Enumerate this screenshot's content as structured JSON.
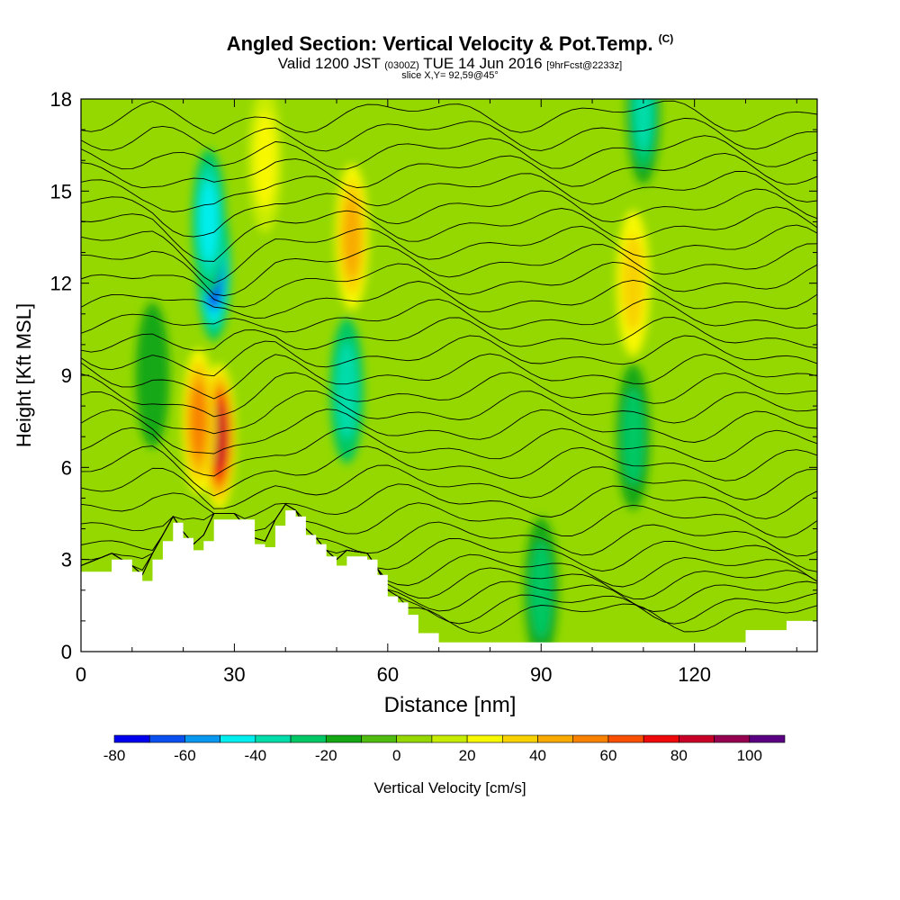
{
  "header": {
    "title": "Angled Section: Vertical Velocity & Pot.Temp.",
    "title_mark": "(C)",
    "valid_prefix": "Valid 1200 JST",
    "valid_utc": "(0300Z)",
    "valid_date": "TUE 14 Jun 2016",
    "forecast": "[9hrFcst@2233z]",
    "slice": "slice X,Y= 92,59@45°"
  },
  "chart_data": {
    "type": "heatmap",
    "title": "Angled Section: Vertical Velocity & Pot.Temp.",
    "xlabel": "Distance [nm]",
    "ylabel": "Height [Kft MSL]",
    "xlim": [
      0,
      144
    ],
    "ylim": [
      0,
      18
    ],
    "x_ticks": [
      "0",
      "30",
      "60",
      "90",
      "120"
    ],
    "y_ticks": [
      "0",
      "3",
      "6",
      "9",
      "12",
      "15",
      "18"
    ],
    "colorbar": {
      "label": "Vertical Velocity [cm/s]",
      "ticks": [
        "-80",
        "-60",
        "-40",
        "-20",
        "0",
        "20",
        "40",
        "60",
        "80",
        "100"
      ],
      "levels": [
        -80,
        -70,
        -60,
        -50,
        -40,
        -30,
        -20,
        -10,
        0,
        10,
        20,
        30,
        40,
        50,
        60,
        70,
        80,
        90,
        100,
        110
      ],
      "colors": [
        "#0000ee",
        "#0a50f0",
        "#0898f0",
        "#00eeee",
        "#00dcaa",
        "#00c864",
        "#14a814",
        "#50bc10",
        "#94d800",
        "#c8ec00",
        "#f8f800",
        "#f8d200",
        "#f8aa00",
        "#f88200",
        "#f85000",
        "#ee0a0a",
        "#c80028",
        "#960050",
        "#5a0082"
      ]
    },
    "velocity_features": [
      {
        "x": 26,
        "y": 12.5,
        "value": -75
      },
      {
        "x": 25,
        "y": 14.0,
        "value": -45
      },
      {
        "x": 27,
        "y": 7.0,
        "value": 85
      },
      {
        "x": 23,
        "y": 7.5,
        "value": 55
      },
      {
        "x": 53,
        "y": 13.5,
        "value": 45
      },
      {
        "x": 52,
        "y": 8.5,
        "value": -35
      },
      {
        "x": 110,
        "y": 17.6,
        "value": -40
      },
      {
        "x": 108,
        "y": 12.0,
        "value": 35
      },
      {
        "x": 108,
        "y": 7.0,
        "value": -25
      },
      {
        "x": 90,
        "y": 2.0,
        "value": -30
      },
      {
        "x": 36,
        "y": 16.0,
        "value": 25
      },
      {
        "x": 14,
        "y": 9.0,
        "value": -15
      }
    ],
    "theta_isentropes": {
      "min_height": [
        1.2,
        1.5,
        1.9,
        2.3,
        2.7,
        3.2,
        3.7,
        4.3,
        4.9,
        5.5,
        6.1,
        6.7,
        7.3,
        7.9,
        8.5,
        9.1,
        9.7,
        10.3,
        10.9,
        11.5,
        12.1,
        12.7,
        13.3,
        13.9,
        14.5,
        15.1,
        15.7,
        16.3,
        16.9,
        17.5
      ]
    },
    "terrain_kft": {
      "x": [
        0,
        6,
        10,
        12,
        14,
        16,
        18,
        20,
        22,
        24,
        26,
        30,
        34,
        36,
        38,
        40,
        42,
        44,
        46,
        48,
        50,
        52,
        56,
        58,
        60,
        62,
        64,
        66,
        70,
        80,
        90,
        100,
        114,
        130,
        138,
        144
      ],
      "height": [
        2.6,
        3.0,
        2.6,
        2.3,
        3.0,
        3.6,
        4.2,
        3.7,
        3.3,
        3.6,
        4.3,
        4.3,
        3.5,
        3.4,
        4.1,
        4.6,
        4.4,
        3.8,
        3.5,
        3.1,
        2.8,
        3.1,
        3.0,
        2.5,
        1.8,
        1.6,
        1.2,
        0.6,
        0.3,
        0.3,
        0.3,
        0.3,
        0.3,
        0.7,
        1.0,
        1.3
      ]
    }
  }
}
